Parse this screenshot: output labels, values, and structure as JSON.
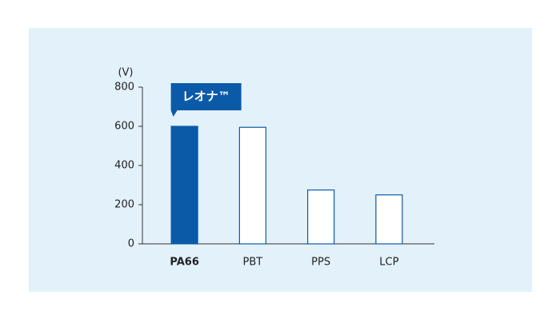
{
  "chart_data": {
    "type": "bar",
    "y_unit": "(V)",
    "categories": [
      "PA66",
      "PBT",
      "PPS",
      "LCP"
    ],
    "values": [
      600,
      595,
      275,
      250
    ],
    "colors": [
      "#0b5aa8",
      "#ffffff",
      "#ffffff",
      "#ffffff"
    ],
    "stroke": "#0b5aa8",
    "ylim": [
      0,
      800
    ],
    "yticks": [
      0,
      200,
      400,
      600,
      800
    ],
    "annotation": {
      "text": "レオナ™",
      "category": "PA66"
    }
  }
}
